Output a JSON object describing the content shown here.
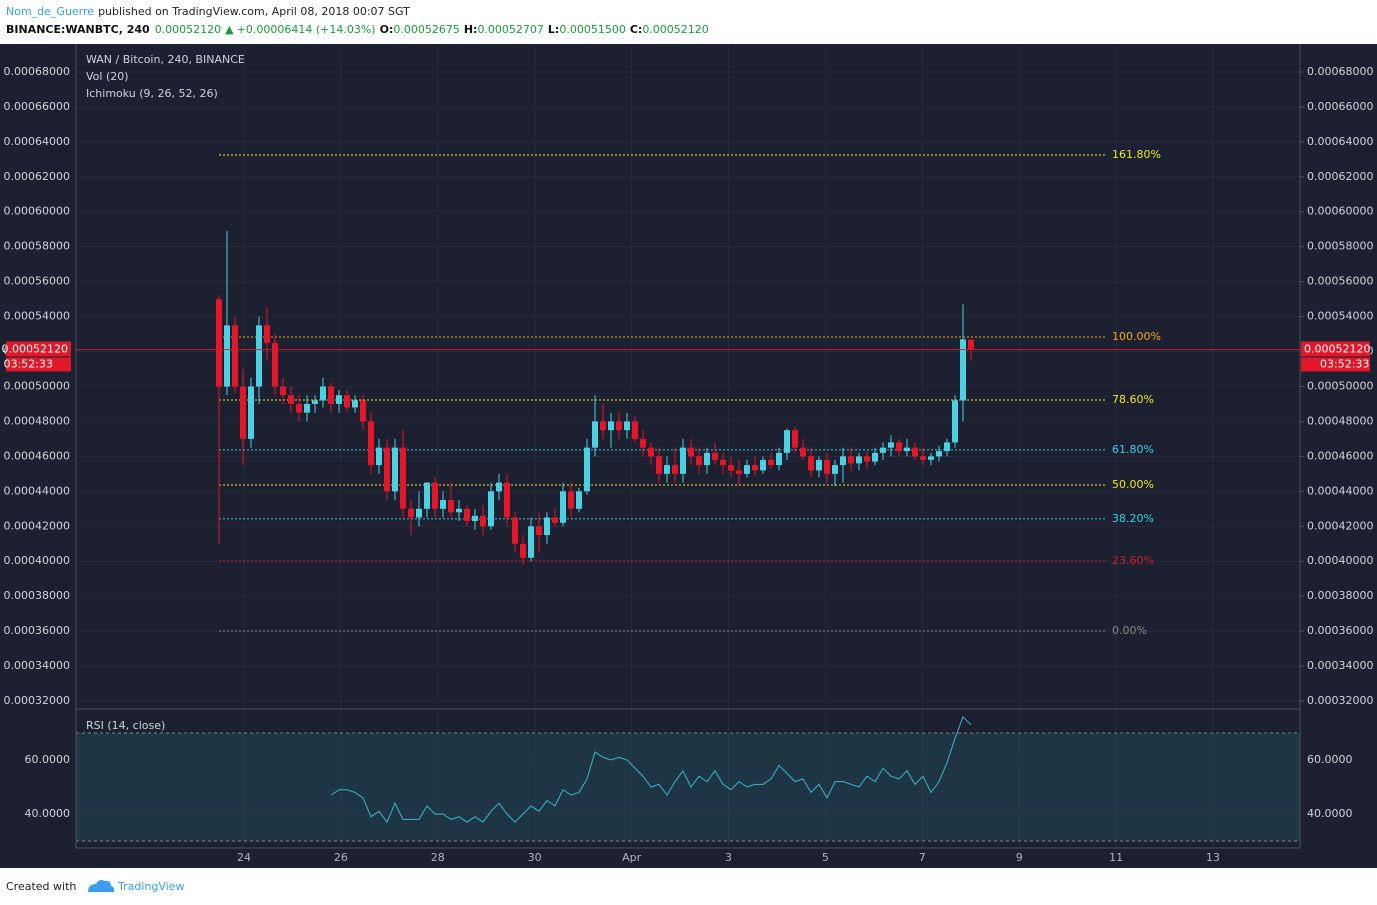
{
  "header": {
    "author": "Nom_de_Guerre",
    "published": "published on TradingView.com, April 08, 2018 00:07 SGT",
    "symbol": "BINANCE:WANBTC, 240",
    "last": "0.00052120",
    "arrow": "▲",
    "change": "+0.00006414 (+14.03%)",
    "o_label": "O:",
    "open": "0.00052675",
    "h_label": "H:",
    "high": "0.00052707",
    "l_label": "L:",
    "low": "0.00051500",
    "c_label": "C:",
    "close": "0.00052120"
  },
  "footer": {
    "created": "Created with",
    "brand": "TradingView"
  },
  "chart_data": {
    "type": "candlestick",
    "title": "WAN / Bitcoin, 240, BINANCE",
    "indicators": [
      "Vol (20)",
      "Ichimoku (9, 26, 52, 26)"
    ],
    "up_color": "#4dd0e1",
    "down_color": "#e0182a",
    "grid": true,
    "ylim": [
      0.000316,
      0.000696
    ],
    "yticks": [
      {
        "value": 0.00032,
        "label": "0.00032000"
      },
      {
        "value": 0.00034,
        "label": "0.00034000"
      },
      {
        "value": 0.00036,
        "label": "0.00036000"
      },
      {
        "value": 0.00038,
        "label": "0.00038000"
      },
      {
        "value": 0.0004,
        "label": "0.00040000"
      },
      {
        "value": 0.00042,
        "label": "0.00042000"
      },
      {
        "value": 0.00044,
        "label": "0.00044000"
      },
      {
        "value": 0.00046,
        "label": "0.00046000"
      },
      {
        "value": 0.00048,
        "label": "0.00048000"
      },
      {
        "value": 0.0005,
        "label": "0.00050000"
      },
      {
        "value": 0.00052,
        "label": "0.00052000"
      },
      {
        "value": 0.00054,
        "label": "0.00054000"
      },
      {
        "value": 0.00056,
        "label": "0.00056000"
      },
      {
        "value": 0.00058,
        "label": "0.00058000"
      },
      {
        "value": 0.0006,
        "label": "0.00060000"
      },
      {
        "value": 0.00062,
        "label": "0.00062000"
      },
      {
        "value": 0.00064,
        "label": "0.00064000"
      },
      {
        "value": 0.00066,
        "label": "0.00066000"
      },
      {
        "value": 0.00068,
        "label": "0.00068000"
      }
    ],
    "xtick_labels": [
      "24",
      "26",
      "28",
      "30",
      "Apr",
      "3",
      "5",
      "7",
      "9",
      "11",
      "13"
    ],
    "last_price": {
      "value": 0.0005212,
      "label": "0.00052120"
    },
    "countdown": "03:52:33",
    "fib_levels": [
      {
        "value": 0.0006325,
        "label": "161.80%",
        "color": "#e8e826"
      },
      {
        "value": 0.0005283,
        "label": "100.00%",
        "color": "#f5a623"
      },
      {
        "value": 0.0004923,
        "label": "78.60%",
        "color": "#e8e826"
      },
      {
        "value": 0.0004637,
        "label": "61.80%",
        "color": "#3ad0e0"
      },
      {
        "value": 0.0004436,
        "label": "50.00%",
        "color": "#e8e826"
      },
      {
        "value": 0.0004242,
        "label": "38.20%",
        "color": "#3ad0e0"
      },
      {
        "value": 0.0004001,
        "label": "23.60%",
        "color": "#c81e2a"
      },
      {
        "value": 0.0003601,
        "label": "0.00%",
        "color": "#888888"
      }
    ],
    "ohlc": [
      [
        0.00055,
        0.000552,
        0.00041,
        0.0005
      ],
      [
        0.0005,
        0.000589,
        0.000495,
        0.000535
      ],
      [
        0.000535,
        0.00054,
        0.000496,
        0.0005
      ],
      [
        0.0005,
        0.00051,
        0.000455,
        0.00047
      ],
      [
        0.00047,
        0.000505,
        0.000465,
        0.0005
      ],
      [
        0.0005,
        0.00054,
        0.00049,
        0.000535
      ],
      [
        0.000535,
        0.000545,
        0.000515,
        0.000525
      ],
      [
        0.000525,
        0.00053,
        0.000495,
        0.0005
      ],
      [
        0.0005,
        0.000505,
        0.00049,
        0.000495
      ],
      [
        0.000495,
        0.0005,
        0.000485,
        0.00049
      ],
      [
        0.00049,
        0.000495,
        0.00048,
        0.000485
      ],
      [
        0.000485,
        0.000495,
        0.00048,
        0.00049
      ],
      [
        0.00049,
        0.000495,
        0.000485,
        0.000492
      ],
      [
        0.000492,
        0.000505,
        0.000488,
        0.0005
      ],
      [
        0.0005,
        0.000502,
        0.000485,
        0.00049
      ],
      [
        0.00049,
        0.000498,
        0.000485,
        0.000495
      ],
      [
        0.000495,
        0.000498,
        0.000486,
        0.000488
      ],
      [
        0.000488,
        0.000495,
        0.000485,
        0.000492
      ],
      [
        0.000492,
        0.000495,
        0.000475,
        0.00048
      ],
      [
        0.00048,
        0.000485,
        0.00045,
        0.000455
      ],
      [
        0.000455,
        0.00047,
        0.00045,
        0.000465
      ],
      [
        0.000465,
        0.00047,
        0.000435,
        0.00044
      ],
      [
        0.00044,
        0.00047,
        0.000435,
        0.000465
      ],
      [
        0.000465,
        0.000475,
        0.000425,
        0.00043
      ],
      [
        0.00043,
        0.000435,
        0.000415,
        0.000425
      ],
      [
        0.000425,
        0.00044,
        0.00042,
        0.00043
      ],
      [
        0.00043,
        0.000445,
        0.000425,
        0.000445
      ],
      [
        0.000445,
        0.000448,
        0.000425,
        0.00043
      ],
      [
        0.00043,
        0.00044,
        0.000425,
        0.000435
      ],
      [
        0.000435,
        0.000445,
        0.000425,
        0.000428
      ],
      [
        0.000428,
        0.000435,
        0.000423,
        0.00043
      ],
      [
        0.00043,
        0.000432,
        0.00042,
        0.000423
      ],
      [
        0.000423,
        0.00043,
        0.000418,
        0.000426
      ],
      [
        0.000426,
        0.000432,
        0.000415,
        0.00042
      ],
      [
        0.00042,
        0.000445,
        0.000418,
        0.00044
      ],
      [
        0.00044,
        0.00045,
        0.000435,
        0.000445
      ],
      [
        0.000445,
        0.00045,
        0.00042,
        0.000425
      ],
      [
        0.000425,
        0.000428,
        0.000405,
        0.00041
      ],
      [
        0.00041,
        0.000415,
        0.000398,
        0.000402
      ],
      [
        0.000402,
        0.000425,
        0.0004,
        0.00042
      ],
      [
        0.00042,
        0.000428,
        0.000405,
        0.000415
      ],
      [
        0.000415,
        0.000428,
        0.00041,
        0.000425
      ],
      [
        0.000425,
        0.00043,
        0.00042,
        0.000422
      ],
      [
        0.000422,
        0.000445,
        0.00042,
        0.00044
      ],
      [
        0.00044,
        0.000445,
        0.000425,
        0.00043
      ],
      [
        0.00043,
        0.000442,
        0.000428,
        0.00044
      ],
      [
        0.00044,
        0.00047,
        0.000438,
        0.000465
      ],
      [
        0.000465,
        0.000495,
        0.00046,
        0.00048
      ],
      [
        0.00048,
        0.00049,
        0.00047,
        0.000475
      ],
      [
        0.000475,
        0.000485,
        0.000465,
        0.00048
      ],
      [
        0.00048,
        0.000485,
        0.00047,
        0.000475
      ],
      [
        0.000475,
        0.000485,
        0.00047,
        0.00048
      ],
      [
        0.00048,
        0.000483,
        0.000468,
        0.00047
      ],
      [
        0.00047,
        0.000475,
        0.00046,
        0.000465
      ],
      [
        0.000465,
        0.000468,
        0.000455,
        0.00046
      ],
      [
        0.00046,
        0.000465,
        0.000445,
        0.00045
      ],
      [
        0.00045,
        0.00046,
        0.000445,
        0.000455
      ],
      [
        0.000455,
        0.000465,
        0.000445,
        0.00045
      ],
      [
        0.00045,
        0.00047,
        0.000445,
        0.000465
      ],
      [
        0.000465,
        0.00047,
        0.000455,
        0.00046
      ],
      [
        0.00046,
        0.000465,
        0.00045,
        0.000455
      ],
      [
        0.000455,
        0.000465,
        0.00045,
        0.000462
      ],
      [
        0.000462,
        0.000468,
        0.000455,
        0.000458
      ],
      [
        0.000458,
        0.000462,
        0.00045,
        0.000455
      ],
      [
        0.000455,
        0.00046,
        0.000448,
        0.000452
      ],
      [
        0.000452,
        0.000458,
        0.000443,
        0.00045
      ],
      [
        0.00045,
        0.000458,
        0.000448,
        0.000455
      ],
      [
        0.000455,
        0.00046,
        0.000449,
        0.000452
      ],
      [
        0.000452,
        0.00046,
        0.00045,
        0.000458
      ],
      [
        0.000458,
        0.000462,
        0.000453,
        0.000455
      ],
      [
        0.000455,
        0.000465,
        0.000452,
        0.000462
      ],
      [
        0.000462,
        0.000476,
        0.000458,
        0.000475
      ],
      [
        0.000475,
        0.000477,
        0.000462,
        0.000465
      ],
      [
        0.000465,
        0.00047,
        0.000458,
        0.00046
      ],
      [
        0.00046,
        0.000465,
        0.000448,
        0.000452
      ],
      [
        0.000452,
        0.00046,
        0.000448,
        0.000458
      ],
      [
        0.000458,
        0.000462,
        0.000445,
        0.00045
      ],
      [
        0.00045,
        0.000458,
        0.000443,
        0.000455
      ],
      [
        0.000455,
        0.000465,
        0.000445,
        0.00046
      ],
      [
        0.00046,
        0.000465,
        0.000452,
        0.000456
      ],
      [
        0.000456,
        0.000462,
        0.000452,
        0.00046
      ],
      [
        0.00046,
        0.000463,
        0.000453,
        0.000457
      ],
      [
        0.000457,
        0.000465,
        0.000455,
        0.000462
      ],
      [
        0.000462,
        0.000468,
        0.000458,
        0.000465
      ],
      [
        0.000465,
        0.000472,
        0.00046,
        0.000468
      ],
      [
        0.000468,
        0.00047,
        0.00046,
        0.000463
      ],
      [
        0.000463,
        0.00047,
        0.00046,
        0.000465
      ],
      [
        0.000465,
        0.000468,
        0.000458,
        0.00046
      ],
      [
        0.00046,
        0.000465,
        0.000455,
        0.000458
      ],
      [
        0.000458,
        0.000462,
        0.000455,
        0.00046
      ],
      [
        0.00046,
        0.000466,
        0.000457,
        0.000463
      ],
      [
        0.000463,
        0.00047,
        0.00046,
        0.000468
      ],
      [
        0.000468,
        0.000495,
        0.000465,
        0.000492
      ],
      [
        0.000492,
        0.000547,
        0.00048,
        0.000527
      ],
      [
        0.00052675,
        0.00052707,
        0.000515,
        0.0005212
      ]
    ],
    "rsi": {
      "title": "RSI (14, close)",
      "color": "#3ab8c8",
      "ylim": [
        27.4,
        77.8
      ],
      "yticks": [
        {
          "value": 40,
          "label": "40.0000"
        },
        {
          "value": 60,
          "label": "60.0000"
        }
      ],
      "bands": [
        30,
        70
      ],
      "values": [
        null,
        null,
        null,
        null,
        null,
        null,
        null,
        null,
        null,
        null,
        null,
        null,
        null,
        null,
        47,
        49,
        49,
        48,
        46,
        39,
        41,
        37,
        44,
        38,
        38,
        38,
        43,
        40,
        40,
        38,
        39,
        37,
        39,
        37,
        41,
        44,
        40,
        37,
        40,
        43,
        41,
        45,
        43,
        49,
        47,
        48,
        53,
        63,
        61,
        60,
        61,
        60,
        57,
        54,
        50,
        51,
        47,
        52,
        56,
        50,
        54,
        52,
        56,
        51,
        49,
        52,
        50,
        51,
        51,
        53,
        58,
        55,
        52,
        53,
        48,
        51,
        46,
        52,
        52,
        51,
        50,
        54,
        52,
        57,
        54,
        53,
        56,
        51,
        54,
        48,
        52,
        59,
        68,
        76,
        73
      ]
    }
  }
}
